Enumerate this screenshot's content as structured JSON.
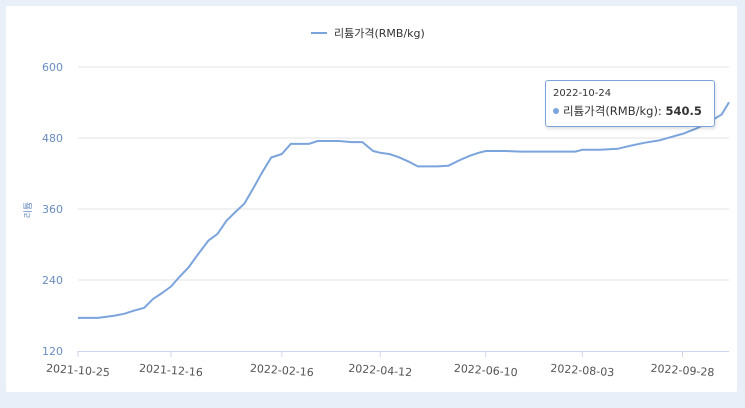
{
  "chart_data": {
    "type": "line",
    "legend": "리튬가격(RMB/kg)",
    "ylabel": "리튬",
    "ylim": [
      120,
      600
    ],
    "y_ticks": [
      "120",
      "240",
      "360",
      "480",
      "600"
    ],
    "x_ticks": [
      "2021-10-25",
      "2021-12-16",
      "2022-02-16",
      "2022-04-12",
      "2022-06-10",
      "2022-08-03",
      "2022-09-28"
    ],
    "grid": true,
    "legend_position": "top-center",
    "color": "#7ba4dc",
    "series": [
      {
        "name": "리튬가격(RMB/kg)",
        "x": [
          "2021-10-25",
          "2021-11-05",
          "2021-11-10",
          "2021-11-15",
          "2021-11-20",
          "2021-11-25",
          "2021-12-01",
          "2021-12-06",
          "2021-12-11",
          "2021-12-16",
          "2021-12-21",
          "2021-12-26",
          "2021-12-31",
          "2022-01-06",
          "2022-01-11",
          "2022-01-16",
          "2022-01-21",
          "2022-01-26",
          "2022-01-31",
          "2022-02-05",
          "2022-02-10",
          "2022-02-16",
          "2022-02-21",
          "2022-02-26",
          "2022-03-03",
          "2022-03-08",
          "2022-03-13",
          "2022-03-20",
          "2022-03-27",
          "2022-04-02",
          "2022-04-08",
          "2022-04-12",
          "2022-04-17",
          "2022-04-22",
          "2022-04-28",
          "2022-05-03",
          "2022-05-08",
          "2022-05-14",
          "2022-05-20",
          "2022-05-26",
          "2022-06-01",
          "2022-06-06",
          "2022-06-10",
          "2022-06-20",
          "2022-06-30",
          "2022-07-10",
          "2022-07-20",
          "2022-07-30",
          "2022-08-03",
          "2022-08-13",
          "2022-08-23",
          "2022-08-30",
          "2022-09-07",
          "2022-09-15",
          "2022-09-22",
          "2022-09-28",
          "2022-10-05",
          "2022-10-12",
          "2022-10-20",
          "2022-10-24"
        ],
        "values": [
          176,
          176,
          178,
          180,
          183,
          188,
          193,
          208,
          218,
          229,
          246,
          262,
          283,
          307,
          318,
          340,
          355,
          369,
          395,
          422,
          447,
          453,
          470,
          470,
          470,
          475,
          475,
          475,
          473,
          473,
          458,
          455,
          453,
          448,
          440,
          432,
          432,
          432,
          433,
          442,
          450,
          455,
          458,
          458,
          457,
          457,
          457,
          457,
          460,
          460,
          462,
          467,
          472,
          476,
          482,
          487,
          495,
          505,
          520,
          540.5
        ]
      }
    ],
    "tooltip": {
      "date": "2022-10-24",
      "label": "리튬가격(RMB/kg): ",
      "value": "540.5"
    }
  }
}
